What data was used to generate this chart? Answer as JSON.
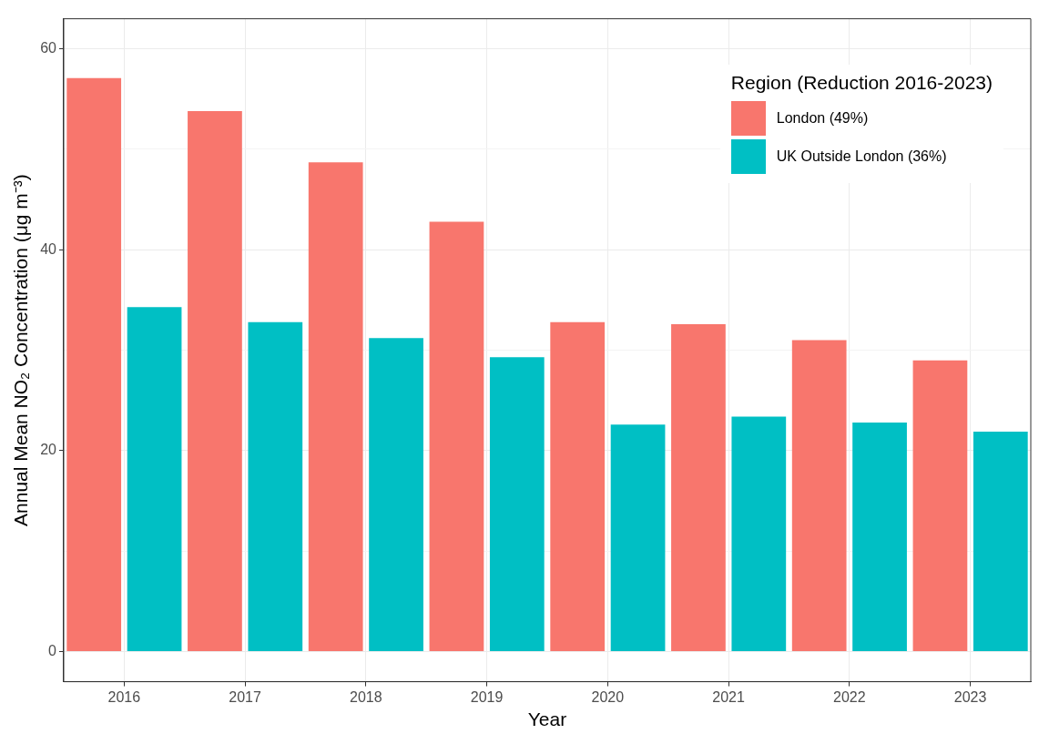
{
  "chart_data": {
    "type": "bar",
    "xlabel": "Year",
    "ylabel": "Annual Mean NO₂ Concentration (μg m⁻³)",
    "legend_title": "Region (Reduction 2016-2023)",
    "categories": [
      "2016",
      "2017",
      "2018",
      "2019",
      "2020",
      "2021",
      "2022",
      "2023"
    ],
    "series": [
      {
        "name": "London (49%)",
        "color": "#f8766d",
        "values": [
          57.1,
          53.8,
          48.7,
          42.8,
          32.8,
          32.6,
          31.0,
          29.0
        ]
      },
      {
        "name": "UK Outside London (36%)",
        "color": "#00bfc4",
        "values": [
          34.3,
          32.8,
          31.2,
          29.3,
          22.6,
          23.4,
          22.8,
          21.9
        ]
      }
    ],
    "ylim": [
      -3,
      63
    ],
    "yticks": [
      0,
      {
        "value": 10,
        "label": null
      },
      20,
      {
        "value": 30,
        "label": null
      },
      40,
      {
        "value": 50,
        "label": null
      },
      60
    ],
    "grid": true,
    "legend": "top right"
  }
}
